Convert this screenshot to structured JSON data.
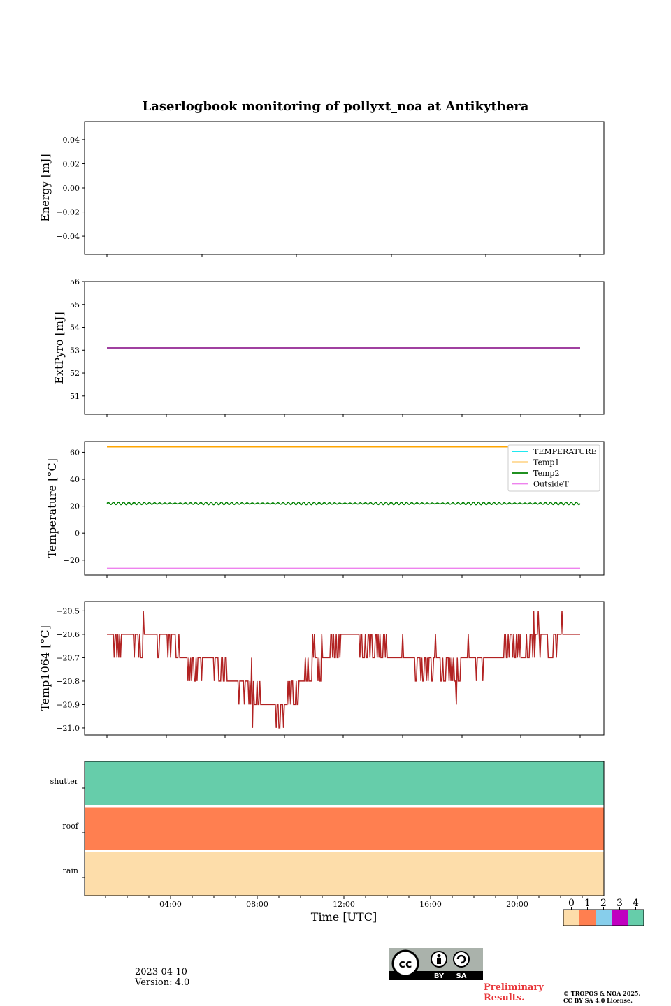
{
  "title": "Laserlogbook monitoring of pollyxt_noa at Antikythera",
  "footer": {
    "date": "2023-04-10",
    "version": "Version: 4.0",
    "preliminary_line1": "Preliminary",
    "preliminary_line2": "Results.",
    "copyright_line1": "© TROPOS & NOA 2025.",
    "copyright_line2": "CC BY SA 4.0 License.",
    "cc_badge": {
      "main": "cc",
      "by": "BY",
      "sa": "SA"
    }
  },
  "chart_data": [
    {
      "type": "line",
      "name": "energy",
      "ylabel": "Energy [mJ]",
      "ylim": [
        -0.055,
        0.055
      ],
      "yticks": [
        0.04,
        0.02,
        0.0,
        -0.02,
        -0.04
      ],
      "ytick_labels": [
        "0.04",
        "0.02",
        "0.00",
        "−0.02",
        "−0.04"
      ],
      "series": []
    },
    {
      "type": "line",
      "name": "extpyro",
      "ylabel": "ExtPyro [mJ]",
      "ylim": [
        50.2,
        56.0
      ],
      "yticks": [
        56,
        55,
        54,
        53,
        52,
        51
      ],
      "ytick_labels": [
        "56",
        "55",
        "54",
        "53",
        "52",
        "51"
      ],
      "x": [
        1.0,
        22.8
      ],
      "series": [
        {
          "color": "#800080",
          "values": [
            53.1,
            53.1
          ]
        }
      ]
    },
    {
      "type": "line",
      "name": "temperature",
      "ylabel": "Temperature [°C]",
      "ylim": [
        -31,
        68
      ],
      "yticks": [
        60,
        40,
        20,
        0,
        -20
      ],
      "ytick_labels": [
        "60",
        "40",
        "20",
        "0",
        "−20"
      ],
      "legend_position": "top-right",
      "x_range": [
        1.0,
        22.8
      ],
      "series": [
        {
          "name": "TEMPERATURE",
          "color": "#00e5ee",
          "values": []
        },
        {
          "name": "Temp1",
          "color": "#ffa500",
          "values": [
            64,
            64
          ]
        },
        {
          "name": "Temp2",
          "color": "#008000",
          "mean": 22,
          "amplitude": 1.0
        },
        {
          "name": "OutsideT",
          "color": "#ee82ee",
          "values": [
            -26,
            -26
          ]
        }
      ]
    },
    {
      "type": "line",
      "name": "temp1064",
      "ylabel": "Temp1064 [°C]",
      "ylim": [
        -21.03,
        -20.46
      ],
      "yticks": [
        -20.5,
        -20.6,
        -20.7,
        -20.8,
        -20.9,
        -21.0
      ],
      "ytick_labels": [
        "−20.5",
        "−20.6",
        "−20.7",
        "−20.8",
        "−20.9",
        "−21.0"
      ],
      "series": [
        {
          "color": "#b22222",
          "x": [
            1.0,
            1.5,
            2.0,
            2.5,
            3.0,
            3.5,
            4.0,
            4.5,
            5.0,
            5.5,
            6.0,
            6.5,
            7.0,
            7.5,
            8.0,
            8.5,
            9.0,
            9.5,
            10.0,
            10.5,
            11.0,
            11.5,
            12.0,
            12.5,
            13.0,
            13.5,
            14.0,
            14.5,
            15.0,
            15.5,
            16.0,
            16.5,
            17.0,
            17.5,
            18.0,
            18.5,
            19.0,
            19.5,
            20.0,
            20.5,
            21.0,
            21.5,
            22.0,
            22.5,
            22.8
          ],
          "values": [
            -20.6,
            -20.65,
            -20.6,
            -20.65,
            -20.6,
            -20.65,
            -20.65,
            -20.7,
            -20.75,
            -20.7,
            -20.75,
            -20.75,
            -20.8,
            -20.85,
            -20.9,
            -20.95,
            -20.95,
            -20.85,
            -20.8,
            -20.75,
            -20.7,
            -20.65,
            -20.6,
            -20.6,
            -20.65,
            -20.65,
            -20.7,
            -20.7,
            -20.7,
            -20.75,
            -20.75,
            -20.75,
            -20.75,
            -20.7,
            -20.7,
            -20.7,
            -20.7,
            -20.65,
            -20.65,
            -20.65,
            -20.6,
            -20.65,
            -20.6,
            -20.6,
            -20.6
          ]
        }
      ]
    },
    {
      "type": "heatmap",
      "name": "status",
      "rows": [
        "shutter",
        "roof",
        "rain"
      ],
      "row_values": [
        4,
        1,
        0
      ],
      "xlabel": "Time [UTC]",
      "xticks": [
        "04:00",
        "08:00",
        "12:00",
        "16:00",
        "20:00"
      ],
      "colorbar": {
        "ticks": [
          "0",
          "1",
          "2",
          "3",
          "4"
        ],
        "colors": [
          "#fdddaa",
          "#ff7f50",
          "#87ceeb",
          "#c000c0",
          "#66cdaa"
        ]
      }
    }
  ]
}
